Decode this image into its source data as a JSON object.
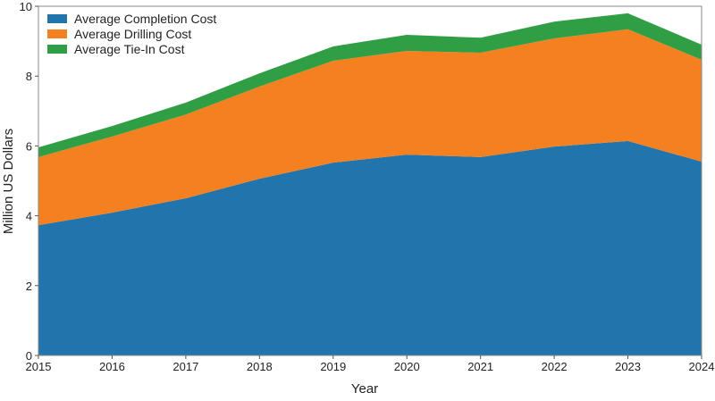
{
  "chart_data": {
    "type": "area",
    "stacked": true,
    "title": "",
    "xlabel": "Year",
    "ylabel": "Million US Dollars",
    "x": [
      2015,
      2016,
      2017,
      2018,
      2019,
      2020,
      2021,
      2022,
      2023,
      2024
    ],
    "xlim": [
      2015,
      2024
    ],
    "ylim": [
      0,
      10
    ],
    "yticks": [
      0,
      2,
      4,
      6,
      8,
      10
    ],
    "grid": false,
    "legend_position": "top-left",
    "series": [
      {
        "name": "Average Completion Cost",
        "color": "#2274ad",
        "values": [
          3.73,
          4.09,
          4.5,
          5.06,
          5.52,
          5.75,
          5.68,
          5.98,
          6.14,
          5.55
        ]
      },
      {
        "name": "Average Drilling Cost",
        "color": "#f58020",
        "values": [
          1.95,
          2.18,
          2.4,
          2.64,
          2.92,
          2.97,
          2.99,
          3.1,
          3.2,
          2.92
        ]
      },
      {
        "name": "Average Tie-In Cost",
        "color": "#2f9e44",
        "values": [
          0.28,
          0.3,
          0.34,
          0.38,
          0.41,
          0.46,
          0.43,
          0.48,
          0.46,
          0.43
        ]
      }
    ]
  }
}
